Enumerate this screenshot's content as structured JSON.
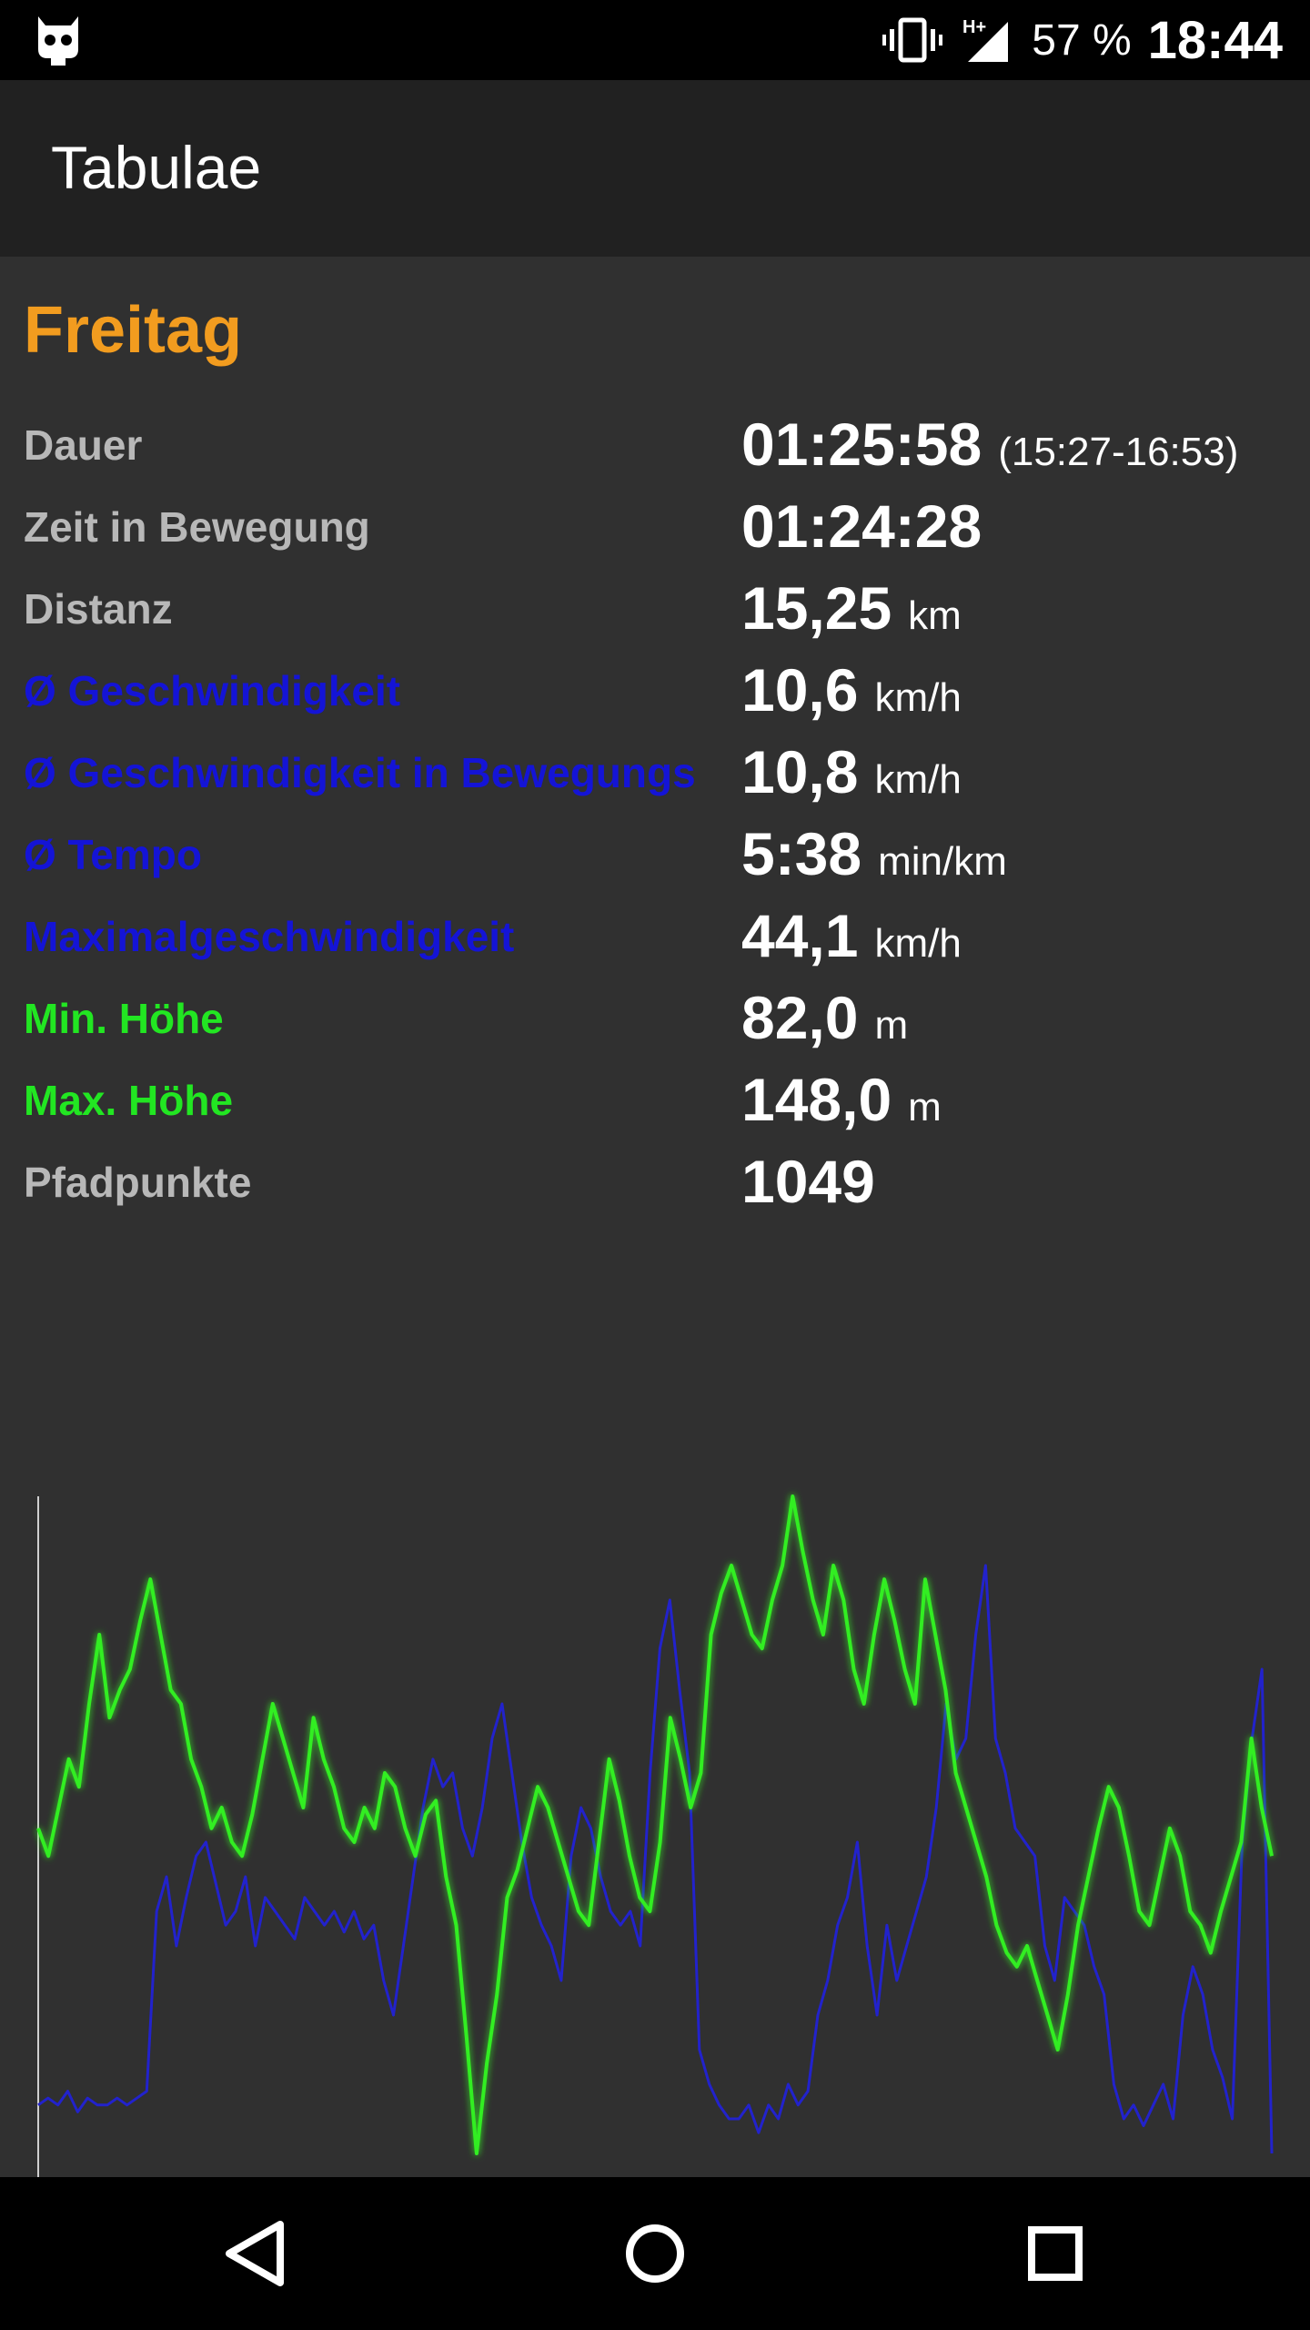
{
  "status_bar": {
    "battery": "57 %",
    "time": "18:44",
    "icons": [
      "cyanogen-bot-icon",
      "vibrate-icon",
      "signal-hplus-icon"
    ]
  },
  "app_bar": {
    "title": "Tabulae"
  },
  "summary": {
    "day": "Freitag",
    "rows": [
      {
        "label": "Dauer",
        "value": "01:25:58",
        "unit": "(15:27-16:53)",
        "color": "#b8b8b8"
      },
      {
        "label": "Zeit in Bewegung",
        "value": "01:24:28",
        "unit": "",
        "color": "#b8b8b8"
      },
      {
        "label": "Distanz",
        "value": "15,25",
        "unit": "km",
        "color": "#b8b8b8"
      },
      {
        "label": "Ø Geschwindigkeit",
        "value": "10,6",
        "unit": "km/h",
        "color": "#1414d6"
      },
      {
        "label": "Ø Geschwindigkeit in Bewegungs",
        "value": "10,8",
        "unit": "km/h",
        "color": "#1414d6"
      },
      {
        "label": "Ø Tempo",
        "value": "5:38",
        "unit": "min/km",
        "color": "#1414d6"
      },
      {
        "label": "Maximalgeschwindigkeit",
        "value": "44,1",
        "unit": "km/h",
        "color": "#1414d6"
      },
      {
        "label": "Min. Höhe",
        "value": "82,0",
        "unit": "m",
        "color": "#22e622"
      },
      {
        "label": "Max. Höhe",
        "value": "148,0",
        "unit": "m",
        "color": "#22e622"
      },
      {
        "label": "Pfadpunkte",
        "value": "1049",
        "unit": "",
        "color": "#b8b8b8"
      }
    ]
  },
  "chart_data": {
    "type": "line",
    "title": "",
    "xlabel": "",
    "ylabel": "",
    "x_range": [
      0,
      100
    ],
    "grid": false,
    "series": [
      {
        "color": "#2222cc",
        "values": [
          12,
          13,
          12,
          14,
          11,
          13,
          12,
          12,
          13,
          12,
          13,
          14,
          40,
          45,
          35,
          42,
          48,
          50,
          44,
          38,
          40,
          45,
          35,
          42,
          40,
          38,
          36,
          42,
          40,
          38,
          40,
          37,
          40,
          36,
          38,
          30,
          25,
          35,
          45,
          55,
          62,
          58,
          60,
          52,
          48,
          55,
          65,
          70,
          60,
          50,
          42,
          38,
          35,
          30,
          48,
          55,
          52,
          45,
          40,
          38,
          40,
          35,
          60,
          78,
          85,
          72,
          60,
          20,
          15,
          12,
          10,
          10,
          12,
          8,
          12,
          10,
          15,
          12,
          14,
          25,
          30,
          38,
          42,
          50,
          35,
          25,
          38,
          30,
          35,
          40,
          45,
          55,
          70,
          62,
          65,
          80,
          90,
          65,
          60,
          52,
          50,
          48,
          35,
          30,
          42,
          40,
          38,
          32,
          28,
          15,
          10,
          12,
          9,
          12,
          15,
          10,
          25,
          32,
          28,
          20,
          16,
          10,
          50,
          65,
          75,
          5
        ],
        "glow": false
      },
      {
        "color": "#33ee22",
        "values": [
          52,
          48,
          55,
          62,
          58,
          70,
          80,
          68,
          72,
          75,
          82,
          88,
          80,
          72,
          70,
          62,
          58,
          52,
          55,
          50,
          48,
          54,
          62,
          70,
          65,
          60,
          55,
          68,
          62,
          58,
          52,
          50,
          55,
          52,
          60,
          58,
          52,
          48,
          54,
          56,
          45,
          38,
          22,
          5,
          18,
          28,
          42,
          46,
          52,
          58,
          55,
          50,
          45,
          40,
          38,
          50,
          62,
          56,
          48,
          42,
          40,
          50,
          68,
          62,
          55,
          60,
          80,
          86,
          90,
          85,
          80,
          78,
          85,
          90,
          100,
          92,
          85,
          80,
          90,
          85,
          75,
          70,
          80,
          88,
          82,
          75,
          70,
          88,
          80,
          72,
          60,
          55,
          50,
          45,
          38,
          34,
          32,
          35,
          30,
          25,
          20,
          28,
          38,
          45,
          52,
          58,
          55,
          48,
          40,
          38,
          45,
          52,
          48,
          40,
          38,
          34,
          40,
          45,
          50,
          65,
          55,
          48
        ]
      }
    ]
  },
  "navigation_bar": {
    "icons": [
      "back-icon",
      "home-icon",
      "recents-icon"
    ]
  }
}
